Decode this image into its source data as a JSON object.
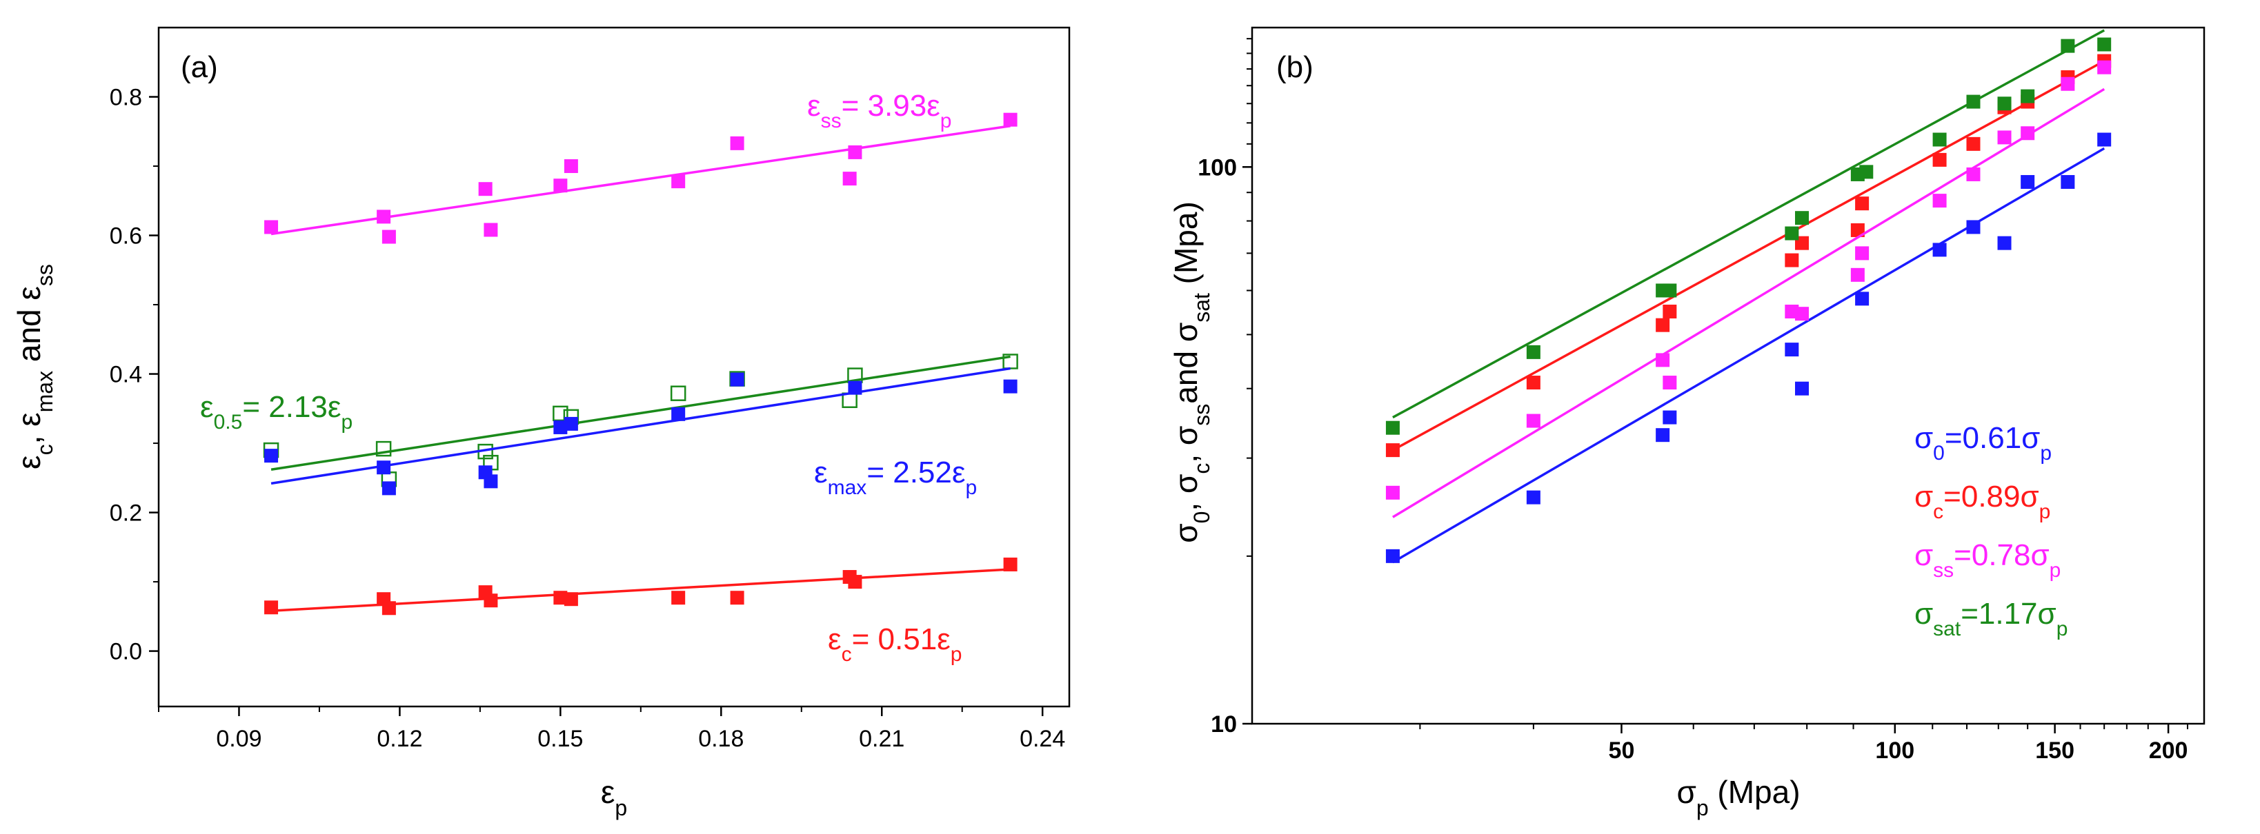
{
  "chart_data": [
    {
      "type": "scatter",
      "panel_label": "(a)",
      "xlabel": {
        "base": "ε",
        "sub": "p",
        "tail": ""
      },
      "ylabel": [
        {
          "t": "ε"
        },
        {
          "t": "c",
          "sub": true
        },
        {
          "t": ", ε"
        },
        {
          "t": "max",
          "sub": true
        },
        {
          "t": " and ε"
        },
        {
          "t": "ss",
          "sub": true
        }
      ],
      "xlim": [
        0.075,
        0.245
      ],
      "ylim": [
        -0.08,
        0.9
      ],
      "xticks": [
        0.09,
        0.12,
        0.15,
        0.18,
        0.21,
        0.24
      ],
      "xtick_labels": [
        "0.09",
        "0.12",
        "0.15",
        "0.18",
        "0.21",
        "0.24"
      ],
      "yticks": [
        0.0,
        0.2,
        0.4,
        0.6,
        0.8
      ],
      "ytick_labels": [
        "0.0",
        "0.2",
        "0.4",
        "0.6",
        "0.8"
      ],
      "series": [
        {
          "name_parts": [
            {
              "t": "ε"
            },
            {
              "t": "ss",
              "sub": true
            },
            {
              "t": "= 3.93ε"
            },
            {
              "t": "p",
              "sub": true
            }
          ],
          "color": "#ff22ff",
          "marker": "filled-square",
          "x": [
            0.096,
            0.117,
            0.118,
            0.136,
            0.137,
            0.15,
            0.152,
            0.172,
            0.183,
            0.204,
            0.205,
            0.234
          ],
          "y": [
            0.612,
            0.627,
            0.598,
            0.667,
            0.608,
            0.672,
            0.7,
            0.678,
            0.733,
            0.682,
            0.72,
            0.767
          ],
          "fit": {
            "x": [
              0.096,
              0.234
            ],
            "y": [
              0.602,
              0.758
            ]
          }
        },
        {
          "name_parts": [
            {
              "t": "ε"
            },
            {
              "t": "0.5",
              "sub": true
            },
            {
              "t": "= 2.13ε"
            },
            {
              "t": "p",
              "sub": true
            }
          ],
          "color": "#1a8a1a",
          "marker": "open-square",
          "x": [
            0.096,
            0.117,
            0.118,
            0.136,
            0.137,
            0.15,
            0.152,
            0.172,
            0.183,
            0.204,
            0.205,
            0.234
          ],
          "y": [
            0.29,
            0.292,
            0.248,
            0.288,
            0.272,
            0.343,
            0.338,
            0.372,
            0.393,
            0.362,
            0.398,
            0.418
          ],
          "fit": {
            "x": [
              0.096,
              0.234
            ],
            "y": [
              0.262,
              0.425
            ]
          }
        },
        {
          "name_parts": [
            {
              "t": "ε"
            },
            {
              "t": "max",
              "sub": true
            },
            {
              "t": "= 2.52ε"
            },
            {
              "t": "p",
              "sub": true
            }
          ],
          "color": "#1a1aff",
          "marker": "filled-square",
          "x": [
            0.096,
            0.117,
            0.118,
            0.136,
            0.137,
            0.15,
            0.152,
            0.172,
            0.183,
            0.205,
            0.234
          ],
          "y": [
            0.282,
            0.265,
            0.235,
            0.258,
            0.245,
            0.323,
            0.328,
            0.342,
            0.392,
            0.38,
            0.382
          ],
          "fit": {
            "x": [
              0.096,
              0.234
            ],
            "y": [
              0.242,
              0.408
            ]
          }
        },
        {
          "name_parts": [
            {
              "t": "ε"
            },
            {
              "t": "c",
              "sub": true
            },
            {
              "t": "= 0.51ε"
            },
            {
              "t": "p",
              "sub": true
            }
          ],
          "color": "#ff1a1a",
          "marker": "filled-square",
          "x": [
            0.096,
            0.117,
            0.118,
            0.136,
            0.137,
            0.15,
            0.152,
            0.172,
            0.183,
            0.204,
            0.205,
            0.234
          ],
          "y": [
            0.063,
            0.075,
            0.062,
            0.085,
            0.073,
            0.077,
            0.075,
            0.077,
            0.077,
            0.107,
            0.1,
            0.125
          ],
          "fit": {
            "x": [
              0.096,
              0.234
            ],
            "y": [
              0.058,
              0.118
            ]
          }
        }
      ]
    },
    {
      "type": "scatter",
      "panel_label": "(b)",
      "xscale": "log",
      "yscale": "log",
      "xlabel": {
        "base": "σ",
        "sub": "p",
        "tail": " (Mpa)"
      },
      "ylabel": [
        {
          "t": "σ"
        },
        {
          "t": "0",
          "sub": true
        },
        {
          "t": ", σ"
        },
        {
          "t": "c",
          "sub": true
        },
        {
          "t": ", σ"
        },
        {
          "t": "ss",
          "sub": true
        },
        {
          "t": "and σ"
        },
        {
          "t": "sat",
          "sub": true
        },
        {
          "t": " (Mpa)"
        }
      ],
      "xlim": [
        19.6,
        219
      ],
      "ylim": [
        10,
        178
      ],
      "xticks": [
        50,
        100,
        150,
        200
      ],
      "xtick_labels": [
        "50",
        "100",
        "150",
        "200"
      ],
      "xminor": [
        30,
        40,
        60,
        70,
        80,
        90,
        110,
        120,
        130,
        140,
        160,
        170,
        180,
        190,
        210
      ],
      "yticks": [
        10,
        100
      ],
      "ytick_labels": [
        "10",
        "100"
      ],
      "yminor": [
        20,
        30,
        40,
        50,
        60,
        70,
        80,
        90,
        110,
        120,
        130,
        140,
        150,
        160,
        170
      ],
      "series": [
        {
          "name_parts": [
            {
              "t": "σ"
            },
            {
              "t": "0",
              "sub": true
            },
            {
              "t": "=0.61σ"
            },
            {
              "t": "p",
              "sub": true
            }
          ],
          "color": "#1a1aff",
          "x": [
            28.0,
            40.0,
            55.5,
            56.5,
            77.0,
            79.0,
            92.0,
            112.0,
            122.0,
            132.0,
            140.0,
            155.0,
            170.0
          ],
          "y": [
            20.0,
            25.5,
            33.0,
            35.5,
            47.0,
            40.0,
            58.0,
            71.0,
            78.0,
            73.0,
            94.0,
            94.0,
            112.0
          ],
          "fit": {
            "x": [
              28.0,
              170.0
            ],
            "y": [
              19.5,
              108.0
            ]
          }
        },
        {
          "name_parts": [
            {
              "t": "σ"
            },
            {
              "t": "c",
              "sub": true
            },
            {
              "t": "=0.89σ"
            },
            {
              "t": "p",
              "sub": true
            }
          ],
          "color": "#ff1a1a",
          "x": [
            28.0,
            40.0,
            55.5,
            56.5,
            77.0,
            79.0,
            91.0,
            92.0,
            112.0,
            122.0,
            132.0,
            140.0,
            155.0,
            170.0
          ],
          "y": [
            31.0,
            41.0,
            52.0,
            55.0,
            68.0,
            73.0,
            77.0,
            86.0,
            103.0,
            110.0,
            128.0,
            131.0,
            145.0,
            155.0
          ],
          "fit": {
            "x": [
              28.0,
              170.0
            ],
            "y": [
              31.0,
              155.0
            ]
          }
        },
        {
          "name_parts": [
            {
              "t": "σ"
            },
            {
              "t": "ss",
              "sub": true
            },
            {
              "t": "=0.78σ"
            },
            {
              "t": "p",
              "sub": true
            }
          ],
          "color": "#ff22ff",
          "x": [
            28.0,
            40.0,
            55.5,
            56.5,
            77.0,
            79.0,
            91.0,
            92.0,
            112.0,
            122.0,
            132.0,
            140.0,
            155.0,
            170.0
          ],
          "y": [
            26.0,
            35.0,
            45.0,
            41.0,
            55.0,
            54.5,
            64.0,
            70.0,
            87.0,
            97.0,
            113.0,
            115.0,
            141.0,
            151.0
          ],
          "fit": {
            "x": [
              28.0,
              170.0
            ],
            "y": [
              23.5,
              138.0
            ]
          }
        },
        {
          "name_parts": [
            {
              "t": "σ"
            },
            {
              "t": "sat",
              "sub": true
            },
            {
              "t": "=1.17σ"
            },
            {
              "t": "p",
              "sub": true
            }
          ],
          "color": "#1a8a1a",
          "x": [
            28.0,
            40.0,
            55.5,
            56.5,
            77.0,
            79.0,
            91.0,
            93.0,
            112.0,
            122.0,
            132.0,
            140.0,
            155.0,
            170.0
          ],
          "y": [
            34.0,
            46.5,
            60.0,
            60.0,
            76.0,
            81.0,
            97.0,
            98.0,
            112.0,
            131.0,
            130.0,
            134.0,
            165.0,
            166.0
          ],
          "fit": {
            "x": [
              28.0,
              170.0
            ],
            "y": [
              35.5,
              176.0
            ]
          }
        }
      ]
    }
  ]
}
